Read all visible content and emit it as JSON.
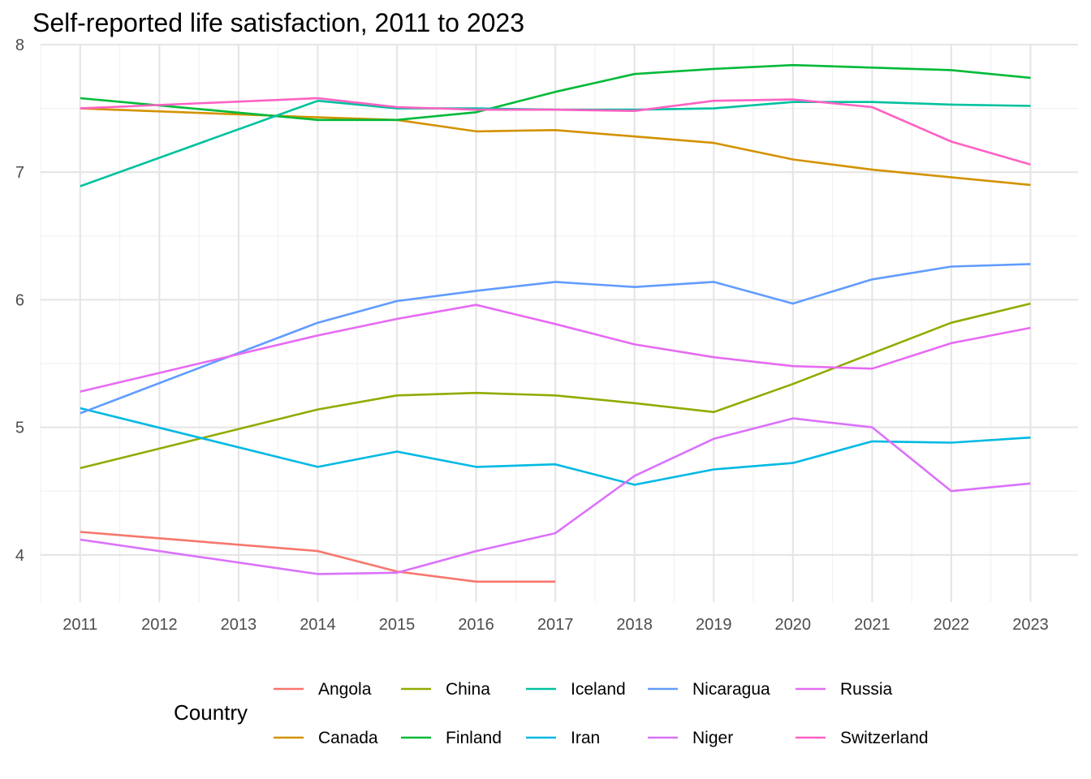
{
  "chart_data": {
    "type": "line",
    "title": "Self-reported life satisfaction, 2011 to 2023",
    "xlabel": "",
    "ylabel": "",
    "x": [
      2011,
      2012,
      2013,
      2014,
      2015,
      2016,
      2017,
      2018,
      2019,
      2020,
      2021,
      2022,
      2023
    ],
    "x_tick_labels": [
      "2011",
      "2012",
      "2013",
      "2014",
      "2015",
      "2016",
      "2017",
      "2018",
      "2019",
      "2020",
      "2021",
      "2022",
      "2023"
    ],
    "y_ticks": [
      4,
      5,
      6,
      7,
      8
    ],
    "y_tick_labels": [
      "4",
      "5",
      "6",
      "7",
      "8"
    ],
    "xlim": [
      2010.5,
      2023.6
    ],
    "ylim": [
      3.63,
      8.0
    ],
    "grid": true,
    "legend": {
      "title": "Country",
      "position": "bottom",
      "rows": 2
    },
    "series": [
      {
        "name": "Angola",
        "color": "#F8766D",
        "points": [
          [
            2011,
            4.18
          ],
          [
            2014,
            4.03
          ],
          [
            2015,
            3.87
          ],
          [
            2016,
            3.79
          ],
          [
            2017,
            3.79
          ]
        ]
      },
      {
        "name": "Canada",
        "color": "#D39200",
        "points": [
          [
            2011,
            7.5
          ],
          [
            2014,
            7.43
          ],
          [
            2015,
            7.41
          ],
          [
            2016,
            7.32
          ],
          [
            2017,
            7.33
          ],
          [
            2019,
            7.23
          ],
          [
            2020,
            7.1
          ],
          [
            2021,
            7.02
          ],
          [
            2023,
            6.9
          ]
        ]
      },
      {
        "name": "China",
        "color": "#93AA00",
        "points": [
          [
            2011,
            4.68
          ],
          [
            2014,
            5.14
          ],
          [
            2015,
            5.25
          ],
          [
            2016,
            5.27
          ],
          [
            2017,
            5.25
          ],
          [
            2018,
            5.19
          ],
          [
            2019,
            5.12
          ],
          [
            2020,
            5.34
          ],
          [
            2022,
            5.82
          ],
          [
            2023,
            5.97
          ]
        ]
      },
      {
        "name": "Finland",
        "color": "#00BA38",
        "points": [
          [
            2011,
            7.58
          ],
          [
            2014,
            7.41
          ],
          [
            2015,
            7.41
          ],
          [
            2016,
            7.47
          ],
          [
            2017,
            7.63
          ],
          [
            2018,
            7.77
          ],
          [
            2019,
            7.81
          ],
          [
            2020,
            7.84
          ],
          [
            2021,
            7.82
          ],
          [
            2022,
            7.8
          ],
          [
            2023,
            7.74
          ]
        ]
      },
      {
        "name": "Iceland",
        "color": "#00C19F",
        "points": [
          [
            2011,
            6.89
          ],
          [
            2014,
            7.56
          ],
          [
            2015,
            7.5
          ],
          [
            2016,
            7.5
          ],
          [
            2017,
            7.49
          ],
          [
            2018,
            7.49
          ],
          [
            2019,
            7.5
          ],
          [
            2020,
            7.55
          ],
          [
            2021,
            7.55
          ],
          [
            2022,
            7.53
          ],
          [
            2023,
            7.52
          ]
        ]
      },
      {
        "name": "Iran",
        "color": "#00B9E3",
        "points": [
          [
            2011,
            5.15
          ],
          [
            2014,
            4.69
          ],
          [
            2015,
            4.81
          ],
          [
            2016,
            4.69
          ],
          [
            2017,
            4.71
          ],
          [
            2018,
            4.55
          ],
          [
            2019,
            4.67
          ],
          [
            2020,
            4.72
          ],
          [
            2021,
            4.89
          ],
          [
            2022,
            4.88
          ],
          [
            2023,
            4.92
          ]
        ]
      },
      {
        "name": "Nicaragua",
        "color": "#619CFF",
        "points": [
          [
            2011,
            5.11
          ],
          [
            2014,
            5.82
          ],
          [
            2015,
            5.99
          ],
          [
            2016,
            6.07
          ],
          [
            2017,
            6.14
          ],
          [
            2018,
            6.1
          ],
          [
            2019,
            6.14
          ],
          [
            2020,
            5.97
          ],
          [
            2021,
            6.16
          ],
          [
            2022,
            6.26
          ],
          [
            2023,
            6.28
          ]
        ]
      },
      {
        "name": "Niger",
        "color": "#DB72FB",
        "points": [
          [
            2011,
            4.12
          ],
          [
            2014,
            3.85
          ],
          [
            2015,
            3.86
          ],
          [
            2016,
            4.03
          ],
          [
            2017,
            4.17
          ],
          [
            2018,
            4.62
          ],
          [
            2019,
            4.91
          ],
          [
            2020,
            5.07
          ],
          [
            2021,
            5.0
          ],
          [
            2022,
            4.5
          ],
          [
            2023,
            4.56
          ]
        ]
      },
      {
        "name": "Russia",
        "color": "#E76BF3",
        "points": [
          [
            2011,
            5.28
          ],
          [
            2014,
            5.72
          ],
          [
            2015,
            5.85
          ],
          [
            2016,
            5.96
          ],
          [
            2017,
            5.81
          ],
          [
            2018,
            5.65
          ],
          [
            2019,
            5.55
          ],
          [
            2020,
            5.48
          ],
          [
            2021,
            5.46
          ],
          [
            2022,
            5.66
          ],
          [
            2023,
            5.78
          ]
        ]
      },
      {
        "name": "Switzerland",
        "color": "#FF61C3",
        "points": [
          [
            2011,
            7.5
          ],
          [
            2014,
            7.58
          ],
          [
            2015,
            7.51
          ],
          [
            2016,
            7.49
          ],
          [
            2017,
            7.49
          ],
          [
            2018,
            7.48
          ],
          [
            2019,
            7.56
          ],
          [
            2020,
            7.57
          ],
          [
            2021,
            7.51
          ],
          [
            2022,
            7.24
          ],
          [
            2023,
            7.06
          ]
        ]
      }
    ]
  }
}
